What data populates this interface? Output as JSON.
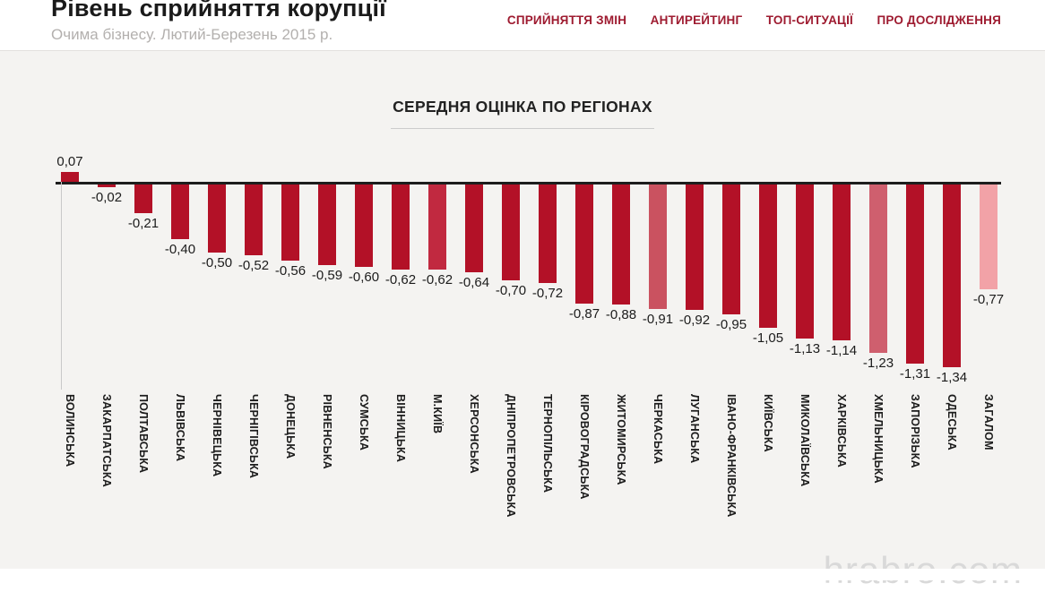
{
  "header": {
    "title": "Рівень сприйняття корупції",
    "subtitle": "Очима бізнесу. Лютий-Березень 2015 р.",
    "nav": [
      "СПРИЙНЯТТЯ ЗМІН",
      "АНТИРЕЙТИНГ",
      "ТОП-СИТУАЦІЇ",
      "ПРО ДОСЛІДЖЕННЯ"
    ],
    "nav_color": "#9e1b30"
  },
  "chart_data": {
    "type": "bar",
    "title": "СЕРЕДНЯ ОЦІНКА ПО РЕГІОНАХ",
    "xlabel": "",
    "ylabel": "",
    "ylim": [
      -1.45,
      0.25
    ],
    "grid": false,
    "legend": false,
    "baseline": 0,
    "categories": [
      "ВОЛИНСЬКА",
      "ЗАКАРПАТСЬКА",
      "ПОЛТАВСЬКА",
      "ЛЬВІВСЬКА",
      "ЧЕРНІВЕЦЬКА",
      "ЧЕРНІГІВСЬКА",
      "ДОНЕЦЬКА",
      "РІВНЕНСЬКА",
      "СУМСЬКА",
      "ВІННИЦЬКА",
      "М.КИЇВ",
      "ХЕРСОНСЬКА",
      "ДНІПРОПЕТРОВСЬКА",
      "ТЕРНОПІЛЬСЬКА",
      "КІРОВОГРАДСЬКА",
      "ЖИТОМИРСЬКА",
      "ЧЕРКАСЬКА",
      "ЛУГАНСЬКА",
      "ІВАНО-ФРАНКІВСЬКА",
      "КИЇВСЬКА",
      "МИКОЛАЇВСЬКА",
      "ХАРКІВСЬКА",
      "ХМЕЛЬНИЦЬКА",
      "ЗАПОРІЗЬКА",
      "ОДЕСЬКА",
      "ЗАГАЛОМ"
    ],
    "values": [
      0.07,
      -0.02,
      -0.21,
      -0.4,
      -0.5,
      -0.52,
      -0.56,
      -0.59,
      -0.6,
      -0.62,
      -0.62,
      -0.64,
      -0.7,
      -0.72,
      -0.87,
      -0.88,
      -0.91,
      -0.92,
      -0.95,
      -1.05,
      -1.13,
      -1.14,
      -1.23,
      -1.31,
      -1.34,
      -0.77
    ],
    "value_labels": [
      "0,07",
      "-0,02",
      "-0,21",
      "-0,40",
      "-0,50",
      "-0,52",
      "-0,56",
      "-0,59",
      "-0,60",
      "-0,62",
      "-0,62",
      "-0,64",
      "-0,70",
      "-0,72",
      "-0,87",
      "-0,88",
      "-0,91",
      "-0,92",
      "-0,95",
      "-1,05",
      "-1,13",
      "-1,14",
      "-1,23",
      "-1,31",
      "-1,34",
      "-0,77"
    ],
    "bar_colors": [
      "#b31127",
      "#b31127",
      "#b31127",
      "#b31127",
      "#b31127",
      "#b31127",
      "#b31127",
      "#b31127",
      "#b31127",
      "#b31127",
      "#c12940",
      "#b31127",
      "#b31127",
      "#b31127",
      "#b31127",
      "#b31127",
      "#ca5260",
      "#b31127",
      "#b31127",
      "#b31127",
      "#b31127",
      "#b31127",
      "#cf5f6e",
      "#b31127",
      "#b31127",
      "#f2a2a7"
    ],
    "colors": {
      "default_bar": "#b31127",
      "highlight_kyiv": "#c12940",
      "highlight_cherkaska": "#ca5260",
      "highlight_khmelnytska": "#cf5f6e",
      "total_bar": "#f2a2a7",
      "axis_line": "#1d1d1d",
      "y_axis_line": "#c9c9c9",
      "background": "#f4f3f1"
    }
  },
  "watermark": "hrabro.com"
}
